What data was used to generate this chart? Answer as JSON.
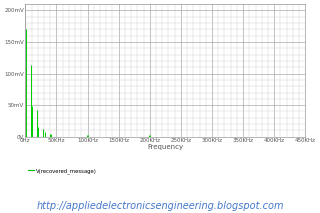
{
  "title": "",
  "xlabel": "Frequency",
  "ylabel": "",
  "legend_label": "V(recovered_message)",
  "legend_color": "#00bb00",
  "background_color": "#ffffff",
  "plot_bg_color": "#ffffff",
  "grid_major_color": "#aaaaaa",
  "grid_minor_color": "#cccccc",
  "line_color": "#00cc00",
  "xlim": [
    0,
    450000
  ],
  "ylim": [
    0,
    0.00021
  ],
  "yticks": [
    0,
    5e-05,
    0.0001,
    0.00015,
    0.0002
  ],
  "ytick_labels": [
    "0V",
    "50mV",
    "100mV",
    "150mV",
    "200mV"
  ],
  "xticks": [
    0,
    50000,
    100000,
    150000,
    200000,
    250000,
    300000,
    350000,
    400000,
    450000
  ],
  "xtick_labels": [
    "0Hz",
    "50KHz",
    "100KHz",
    "150KHz",
    "200KHz",
    "250KHz",
    "300KHz",
    "350KHz",
    "400KHz",
    "450KHz"
  ],
  "spikes": [
    {
      "freq": 1000,
      "amp": 0.00017
    },
    {
      "freq": 9000,
      "amp": 0.000113
    },
    {
      "freq": 11000,
      "amp": 4.8e-05
    },
    {
      "freq": 19000,
      "amp": 4.2e-05
    },
    {
      "freq": 21000,
      "amp": 1.6e-05
    },
    {
      "freq": 29000,
      "amp": 1.2e-05
    },
    {
      "freq": 31000,
      "amp": 8e-06
    },
    {
      "freq": 39000,
      "amp": 5e-06
    },
    {
      "freq": 41000,
      "amp": 4e-06
    },
    {
      "freq": 99000,
      "amp": 3e-06
    },
    {
      "freq": 101000,
      "amp": 3e-06
    },
    {
      "freq": 199000,
      "amp": 2e-06
    },
    {
      "freq": 201000,
      "amp": 2e-06
    }
  ],
  "url_text": "http://appliedelectronicsengineering.blogspot.com",
  "url_color": "#4477cc",
  "url_fontsize": 7.0,
  "tick_fontsize": 4.0,
  "xlabel_fontsize": 5.0,
  "legend_fontsize": 3.8
}
